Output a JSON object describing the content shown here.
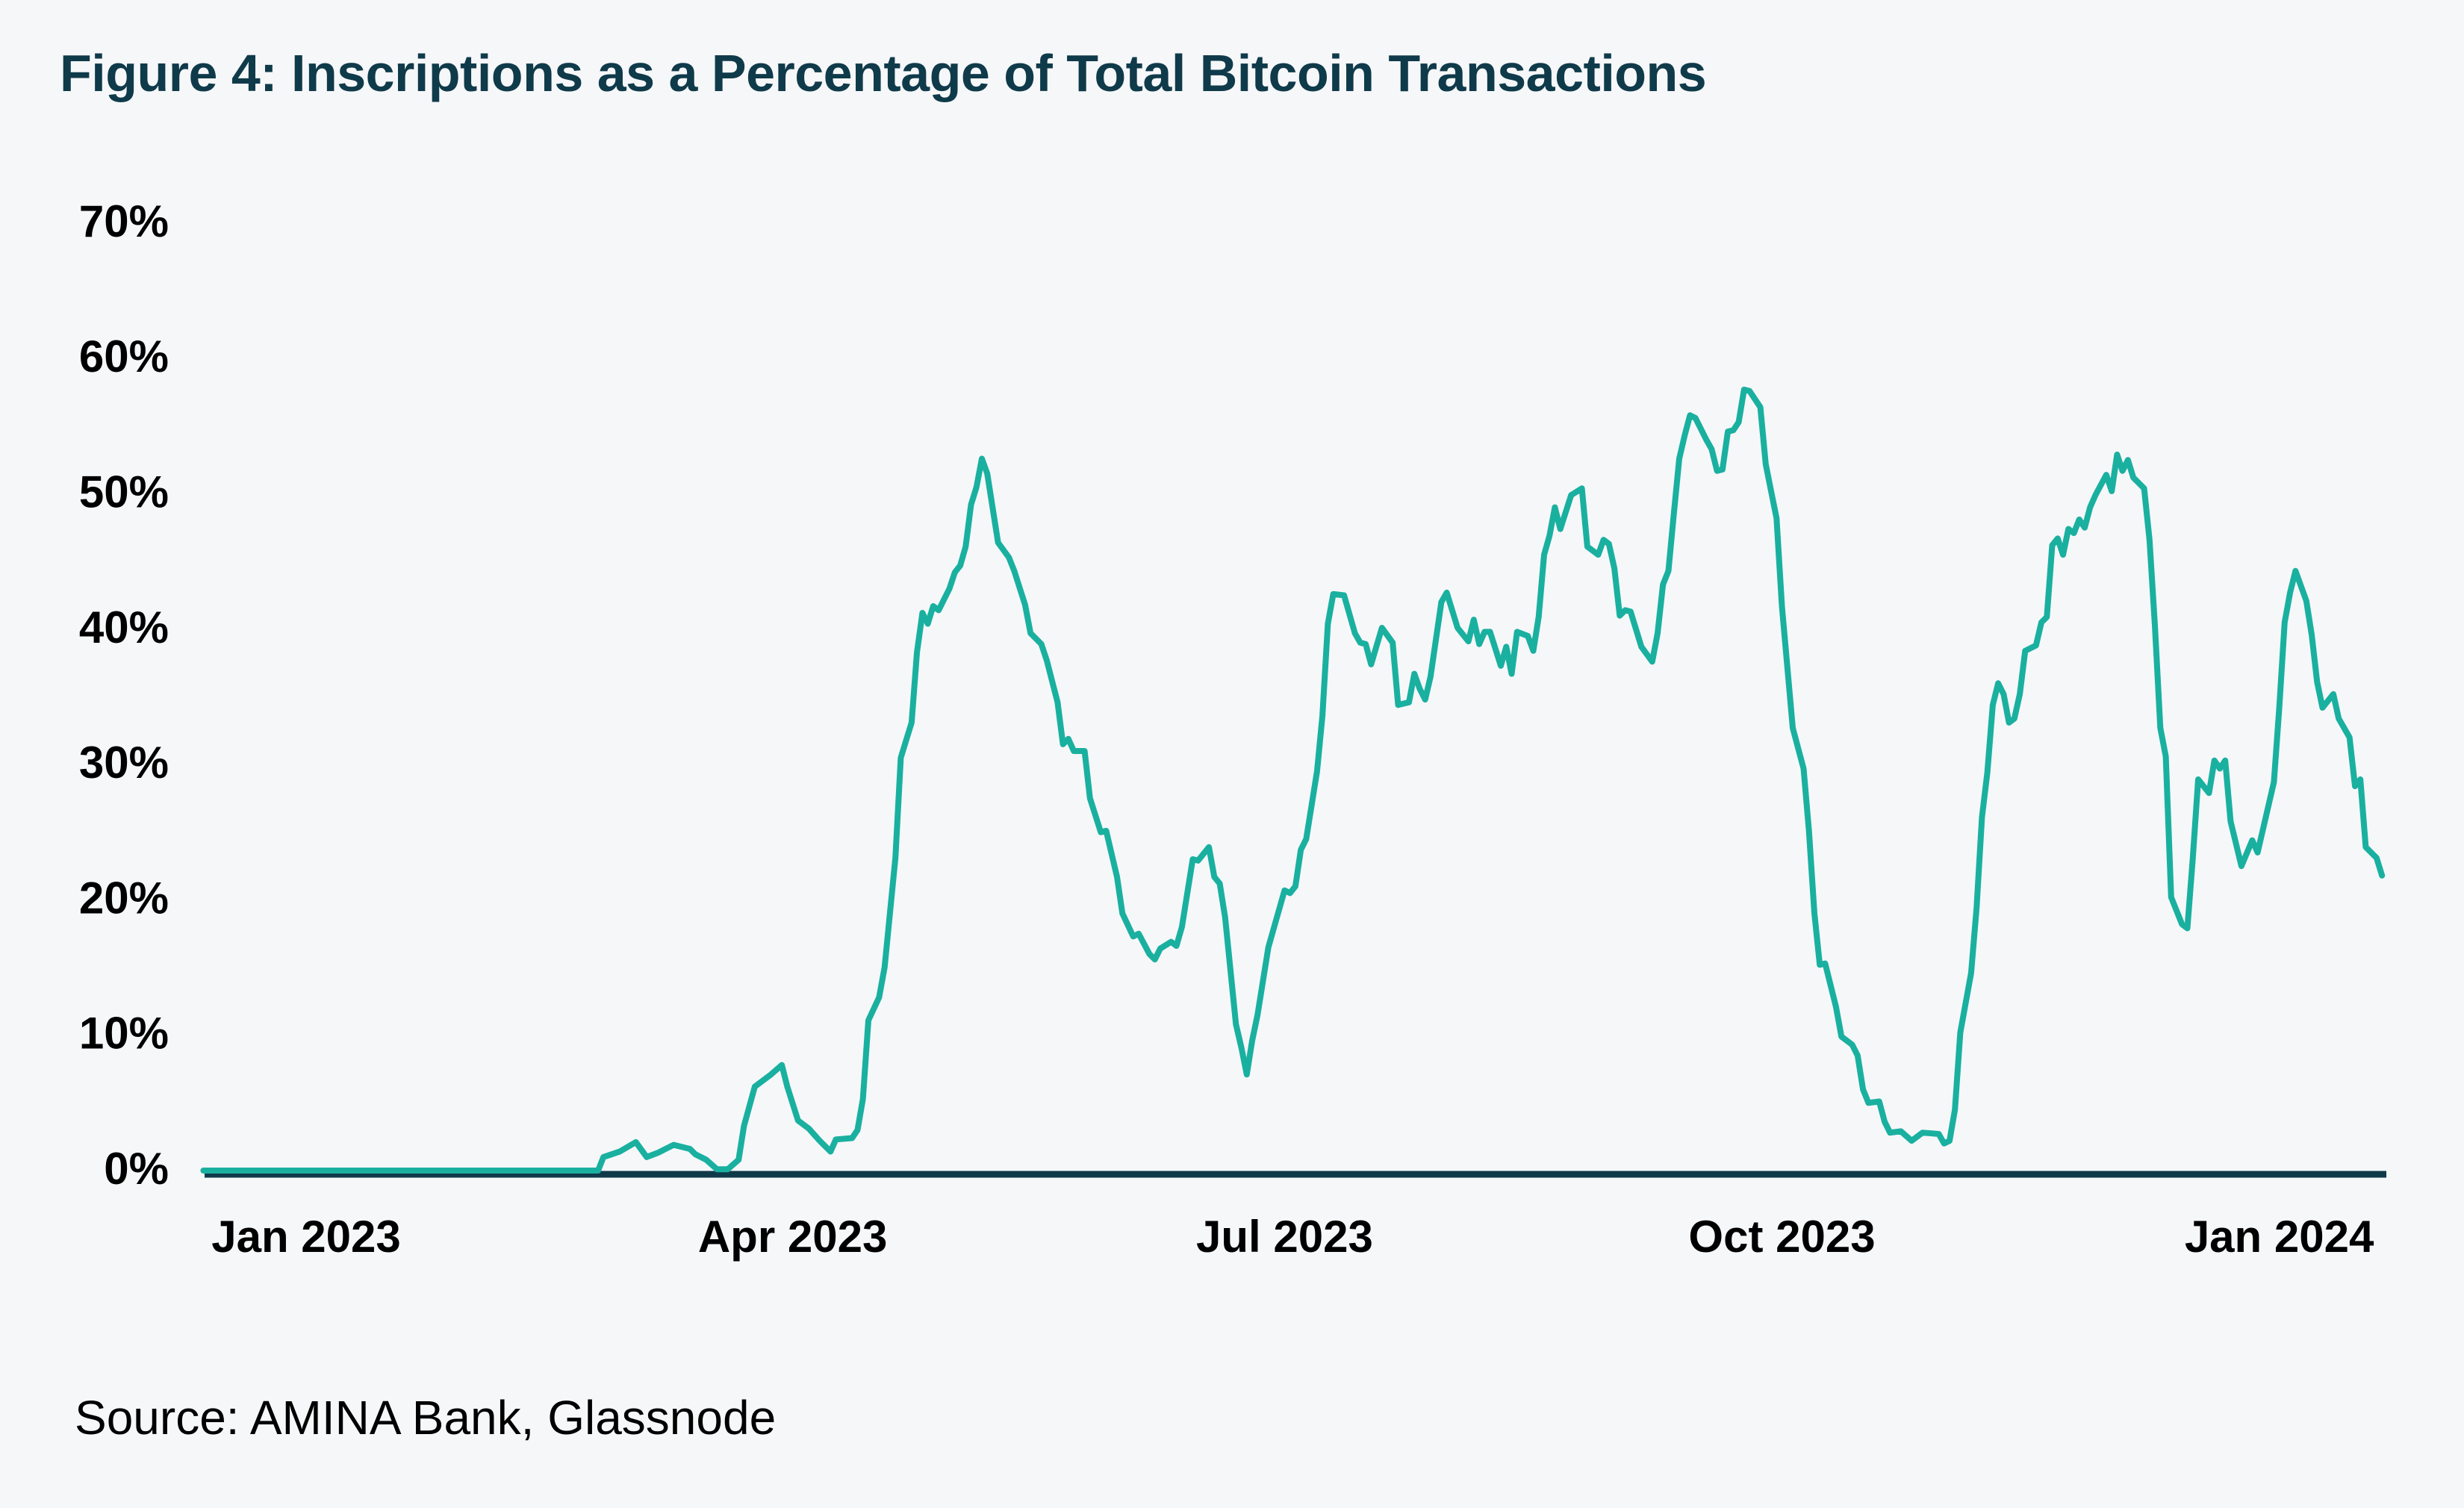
{
  "chart_data": {
    "type": "line",
    "title": "Figure 4: Inscriptions as a Percentage of Total Bitcoin Transactions",
    "xlabel": "",
    "ylabel": "",
    "ylim": [
      0,
      70
    ],
    "y_ticks": [
      "0%",
      "10%",
      "20%",
      "30%",
      "40%",
      "50%",
      "60%",
      "70%"
    ],
    "x_ticks": [
      {
        "label": "Jan 2023",
        "date": "2023-01-01"
      },
      {
        "label": "Apr 2023",
        "date": "2023-04-01"
      },
      {
        "label": "Jul 2023",
        "date": "2023-07-01"
      },
      {
        "label": "Oct 2023",
        "date": "2023-10-01"
      },
      {
        "label": "Jan 2024",
        "date": "2024-01-01"
      }
    ],
    "grid": false,
    "legend": "none",
    "source": "Source: AMINA Bank, Glassnode",
    "colors": {
      "line": "#1ab0a0",
      "axis": "#0f3a4a",
      "title": "#0f3a4a",
      "background": "#f6f7f9"
    },
    "series": [
      {
        "unit": "%",
        "points": [
          [
            "2022-12-13",
            0
          ],
          [
            "2023-02-24",
            0
          ],
          [
            "2023-02-25",
            1.0
          ],
          [
            "2023-02-28",
            1.4
          ],
          [
            "2023-03-03",
            2.1
          ],
          [
            "2023-03-05",
            1.0
          ],
          [
            "2023-03-07",
            1.3
          ],
          [
            "2023-03-10",
            1.9
          ],
          [
            "2023-03-13",
            1.6
          ],
          [
            "2023-03-14",
            1.2
          ],
          [
            "2023-03-16",
            0.8
          ],
          [
            "2023-03-18",
            0.1
          ],
          [
            "2023-03-20",
            0.1
          ],
          [
            "2023-03-22",
            0.8
          ],
          [
            "2023-03-23",
            3.3
          ],
          [
            "2023-03-25",
            6.2
          ],
          [
            "2023-03-28",
            7.1
          ],
          [
            "2023-03-30",
            7.8
          ],
          [
            "2023-03-31",
            6.2
          ],
          [
            "2023-04-02",
            3.7
          ],
          [
            "2023-04-04",
            3.1
          ],
          [
            "2023-04-06",
            2.2
          ],
          [
            "2023-04-08",
            1.4
          ],
          [
            "2023-04-09",
            2.3
          ],
          [
            "2023-04-12",
            2.4
          ],
          [
            "2023-04-13",
            3.0
          ],
          [
            "2023-04-14",
            5.3
          ],
          [
            "2023-04-15",
            11.1
          ],
          [
            "2023-04-17",
            12.8
          ],
          [
            "2023-04-18",
            15.0
          ],
          [
            "2023-04-20",
            23.1
          ],
          [
            "2023-04-21",
            30.5
          ],
          [
            "2023-04-23",
            33.1
          ],
          [
            "2023-04-24",
            38.3
          ],
          [
            "2023-04-25",
            41.2
          ],
          [
            "2023-04-26",
            40.4
          ],
          [
            "2023-04-27",
            41.7
          ],
          [
            "2023-04-28",
            41.4
          ],
          [
            "2023-04-30",
            43.0
          ],
          [
            "2023-05-01",
            44.2
          ],
          [
            "2023-05-02",
            44.7
          ],
          [
            "2023-05-03",
            46.1
          ],
          [
            "2023-05-04",
            49.2
          ],
          [
            "2023-05-05",
            50.5
          ],
          [
            "2023-05-06",
            52.6
          ],
          [
            "2023-05-07",
            51.5
          ],
          [
            "2023-05-09",
            46.4
          ],
          [
            "2023-05-11",
            45.3
          ],
          [
            "2023-05-12",
            44.3
          ],
          [
            "2023-05-14",
            41.8
          ],
          [
            "2023-05-15",
            39.7
          ],
          [
            "2023-05-17",
            38.9
          ],
          [
            "2023-05-18",
            37.7
          ],
          [
            "2023-05-20",
            34.6
          ],
          [
            "2023-05-21",
            31.5
          ],
          [
            "2023-05-22",
            31.9
          ],
          [
            "2023-05-23",
            31.0
          ],
          [
            "2023-05-25",
            31.0
          ],
          [
            "2023-05-26",
            27.5
          ],
          [
            "2023-05-28",
            25.0
          ],
          [
            "2023-05-29",
            25.1
          ],
          [
            "2023-05-31",
            21.7
          ],
          [
            "2023-06-01",
            19.0
          ],
          [
            "2023-06-03",
            17.3
          ],
          [
            "2023-06-04",
            17.5
          ],
          [
            "2023-06-06",
            16.0
          ],
          [
            "2023-06-07",
            15.6
          ],
          [
            "2023-06-08",
            16.4
          ],
          [
            "2023-06-10",
            16.9
          ],
          [
            "2023-06-11",
            16.6
          ],
          [
            "2023-06-12",
            18.0
          ],
          [
            "2023-06-14",
            23.0
          ],
          [
            "2023-06-15",
            22.9
          ],
          [
            "2023-06-17",
            23.9
          ],
          [
            "2023-06-18",
            21.7
          ],
          [
            "2023-06-19",
            21.2
          ],
          [
            "2023-06-20",
            18.7
          ],
          [
            "2023-06-22",
            10.8
          ],
          [
            "2023-06-23",
            9.1
          ],
          [
            "2023-06-24",
            7.1
          ],
          [
            "2023-06-25",
            9.6
          ],
          [
            "2023-06-26",
            11.5
          ],
          [
            "2023-06-28",
            16.5
          ],
          [
            "2023-07-01",
            20.7
          ],
          [
            "2023-07-02",
            20.5
          ],
          [
            "2023-07-03",
            21.0
          ],
          [
            "2023-07-04",
            23.7
          ],
          [
            "2023-07-05",
            24.5
          ],
          [
            "2023-07-07",
            29.5
          ],
          [
            "2023-07-08",
            33.6
          ],
          [
            "2023-07-09",
            40.4
          ],
          [
            "2023-07-10",
            42.6
          ],
          [
            "2023-07-12",
            42.5
          ],
          [
            "2023-07-14",
            39.7
          ],
          [
            "2023-07-15",
            39.0
          ],
          [
            "2023-07-16",
            38.9
          ],
          [
            "2023-07-17",
            37.4
          ],
          [
            "2023-07-19",
            40.1
          ],
          [
            "2023-07-21",
            39.0
          ],
          [
            "2023-07-22",
            34.4
          ],
          [
            "2023-07-24",
            34.6
          ],
          [
            "2023-07-25",
            36.7
          ],
          [
            "2023-07-26",
            35.6
          ],
          [
            "2023-07-27",
            34.8
          ],
          [
            "2023-07-28",
            36.5
          ],
          [
            "2023-07-30",
            42.0
          ],
          [
            "2023-07-31",
            42.7
          ],
          [
            "2023-08-02",
            40.1
          ],
          [
            "2023-08-04",
            39.1
          ],
          [
            "2023-08-05",
            40.7
          ],
          [
            "2023-08-06",
            38.9
          ],
          [
            "2023-08-07",
            39.8
          ],
          [
            "2023-08-08",
            39.8
          ],
          [
            "2023-08-10",
            37.3
          ],
          [
            "2023-08-11",
            38.7
          ],
          [
            "2023-08-12",
            36.7
          ],
          [
            "2023-08-13",
            39.8
          ],
          [
            "2023-08-15",
            39.5
          ],
          [
            "2023-08-16",
            38.4
          ],
          [
            "2023-08-17",
            40.9
          ],
          [
            "2023-08-18",
            45.5
          ],
          [
            "2023-08-19",
            46.9
          ],
          [
            "2023-08-20",
            49.0
          ],
          [
            "2023-08-21",
            47.4
          ],
          [
            "2023-08-23",
            49.9
          ],
          [
            "2023-08-25",
            50.4
          ],
          [
            "2023-08-26",
            46.1
          ],
          [
            "2023-08-28",
            45.5
          ],
          [
            "2023-08-29",
            46.6
          ],
          [
            "2023-08-30",
            46.3
          ],
          [
            "2023-08-31",
            44.5
          ],
          [
            "2023-09-01",
            41.0
          ],
          [
            "2023-09-02",
            41.4
          ],
          [
            "2023-09-03",
            41.3
          ],
          [
            "2023-09-05",
            38.7
          ],
          [
            "2023-09-07",
            37.6
          ],
          [
            "2023-09-08",
            39.7
          ],
          [
            "2023-09-09",
            43.3
          ],
          [
            "2023-09-10",
            44.3
          ],
          [
            "2023-09-11",
            48.5
          ],
          [
            "2023-09-12",
            52.6
          ],
          [
            "2023-09-13",
            54.3
          ],
          [
            "2023-09-14",
            55.8
          ],
          [
            "2023-09-15",
            55.6
          ],
          [
            "2023-09-17",
            54.0
          ],
          [
            "2023-09-18",
            53.3
          ],
          [
            "2023-09-19",
            51.7
          ],
          [
            "2023-09-20",
            51.8
          ],
          [
            "2023-09-21",
            54.6
          ],
          [
            "2023-09-22",
            54.7
          ],
          [
            "2023-09-23",
            55.3
          ],
          [
            "2023-09-24",
            57.7
          ],
          [
            "2023-09-25",
            57.6
          ],
          [
            "2023-09-27",
            56.4
          ],
          [
            "2023-09-28",
            52.2
          ],
          [
            "2023-09-29",
            50.2
          ],
          [
            "2023-09-30",
            48.2
          ],
          [
            "2023-10-01",
            41.7
          ],
          [
            "2023-10-03",
            32.7
          ],
          [
            "2023-10-05",
            29.7
          ],
          [
            "2023-10-06",
            25.1
          ],
          [
            "2023-10-07",
            19.0
          ],
          [
            "2023-10-08",
            15.2
          ],
          [
            "2023-10-09",
            15.3
          ],
          [
            "2023-10-11",
            12.1
          ],
          [
            "2023-10-12",
            9.9
          ],
          [
            "2023-10-14",
            9.3
          ],
          [
            "2023-10-15",
            8.5
          ],
          [
            "2023-10-16",
            6.0
          ],
          [
            "2023-10-17",
            5.0
          ],
          [
            "2023-10-19",
            5.1
          ],
          [
            "2023-10-20",
            3.6
          ],
          [
            "2023-10-21",
            2.8
          ],
          [
            "2023-10-23",
            2.9
          ],
          [
            "2023-10-25",
            2.2
          ],
          [
            "2023-10-27",
            2.8
          ],
          [
            "2023-10-30",
            2.7
          ],
          [
            "2023-10-31",
            2.0
          ],
          [
            "2023-11-01",
            2.2
          ],
          [
            "2023-11-02",
            4.5
          ],
          [
            "2023-11-03",
            10.2
          ],
          [
            "2023-11-05",
            14.6
          ],
          [
            "2023-11-06",
            19.4
          ],
          [
            "2023-11-07",
            26.1
          ],
          [
            "2023-11-08",
            29.4
          ],
          [
            "2023-11-09",
            34.4
          ],
          [
            "2023-11-10",
            36.0
          ],
          [
            "2023-11-11",
            35.2
          ],
          [
            "2023-11-12",
            33.1
          ],
          [
            "2023-11-13",
            33.4
          ],
          [
            "2023-11-14",
            35.2
          ],
          [
            "2023-11-15",
            38.4
          ],
          [
            "2023-11-17",
            38.8
          ],
          [
            "2023-11-18",
            40.5
          ],
          [
            "2023-11-19",
            40.9
          ],
          [
            "2023-11-20",
            46.2
          ],
          [
            "2023-11-21",
            46.7
          ],
          [
            "2023-11-22",
            45.5
          ],
          [
            "2023-11-23",
            47.4
          ],
          [
            "2023-11-24",
            47.1
          ],
          [
            "2023-11-25",
            48.1
          ],
          [
            "2023-11-26",
            47.5
          ],
          [
            "2023-11-27",
            49.0
          ],
          [
            "2023-11-28",
            49.9
          ],
          [
            "2023-11-30",
            51.4
          ],
          [
            "2023-12-01",
            50.2
          ],
          [
            "2023-12-02",
            52.9
          ],
          [
            "2023-12-03",
            51.7
          ],
          [
            "2023-12-04",
            52.5
          ],
          [
            "2023-12-05",
            51.2
          ],
          [
            "2023-12-07",
            50.4
          ],
          [
            "2023-12-08",
            46.6
          ],
          [
            "2023-12-09",
            40.2
          ],
          [
            "2023-12-10",
            32.7
          ],
          [
            "2023-12-11",
            30.6
          ],
          [
            "2023-12-12",
            20.2
          ],
          [
            "2023-12-14",
            18.2
          ],
          [
            "2023-12-15",
            17.9
          ],
          [
            "2023-12-16",
            23.1
          ],
          [
            "2023-12-17",
            28.9
          ],
          [
            "2023-12-19",
            27.9
          ],
          [
            "2023-12-20",
            30.3
          ],
          [
            "2023-12-21",
            29.7
          ],
          [
            "2023-12-22",
            30.3
          ],
          [
            "2023-12-23",
            25.8
          ],
          [
            "2023-12-25",
            22.5
          ],
          [
            "2023-12-27",
            24.4
          ],
          [
            "2023-12-28",
            23.5
          ],
          [
            "2023-12-31",
            28.7
          ],
          [
            "2024-01-01",
            34.2
          ],
          [
            "2024-01-02",
            40.5
          ],
          [
            "2024-01-03",
            42.7
          ],
          [
            "2024-01-04",
            44.3
          ],
          [
            "2024-01-06",
            42.1
          ],
          [
            "2024-01-07",
            39.6
          ],
          [
            "2024-01-08",
            36.1
          ],
          [
            "2024-01-09",
            34.2
          ],
          [
            "2024-01-11",
            35.2
          ],
          [
            "2024-01-12",
            33.4
          ],
          [
            "2024-01-14",
            32.0
          ],
          [
            "2024-01-15",
            28.4
          ],
          [
            "2024-01-16",
            28.9
          ],
          [
            "2024-01-17",
            23.9
          ],
          [
            "2024-01-19",
            23.1
          ],
          [
            "2024-01-20",
            21.8
          ]
        ]
      }
    ]
  }
}
